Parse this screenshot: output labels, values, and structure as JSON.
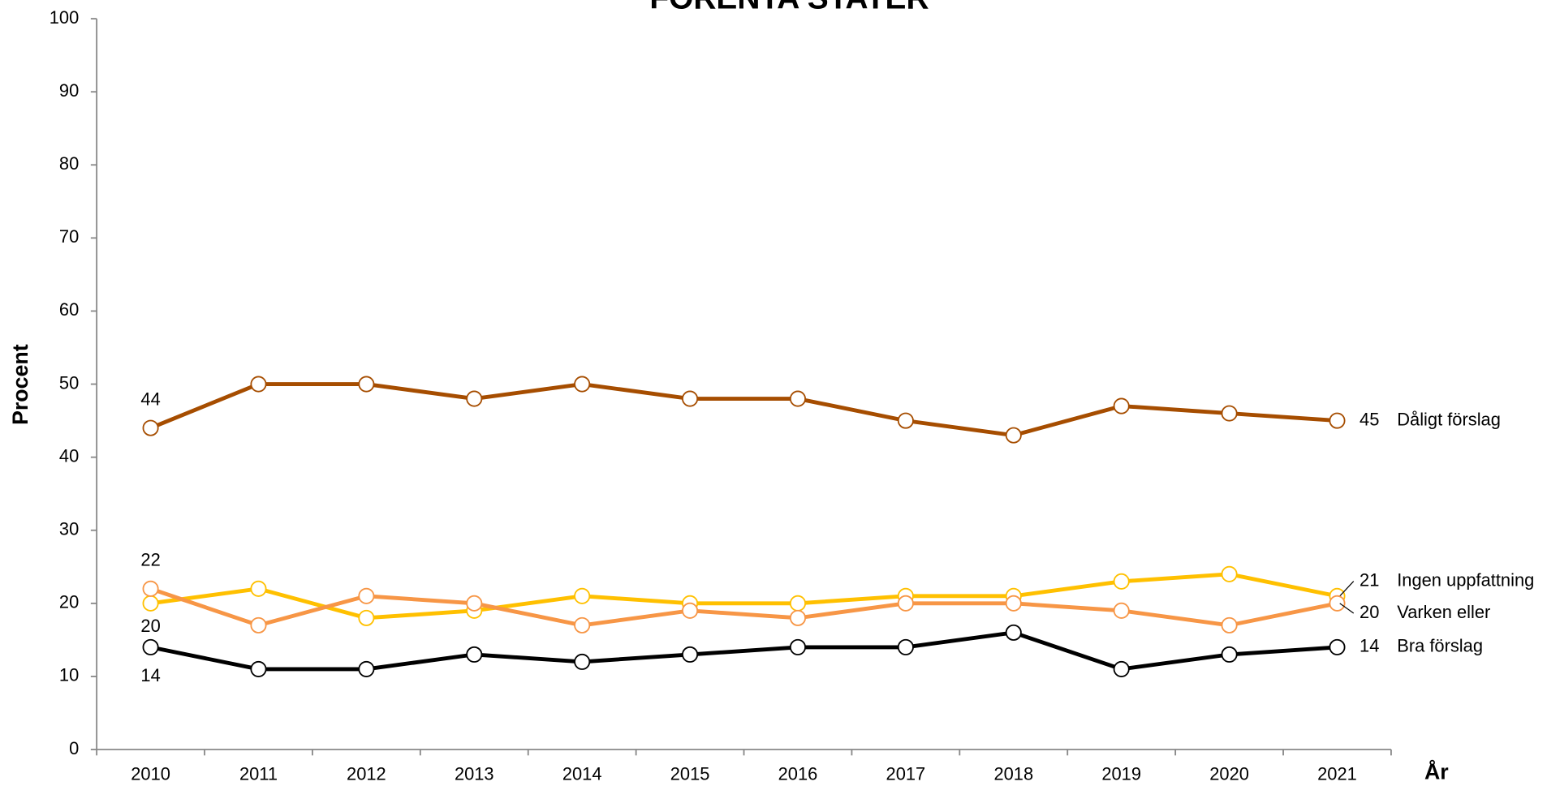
{
  "chart_data": {
    "type": "line",
    "title": "FÖRENTA STATER",
    "x_label": "År",
    "y_label": "Procent",
    "categories": [
      "2010",
      "2011",
      "2012",
      "2013",
      "2014",
      "2015",
      "2016",
      "2017",
      "2018",
      "2019",
      "2020",
      "2021"
    ],
    "ylim": [
      0,
      100
    ],
    "yticks": [
      0,
      10,
      20,
      30,
      40,
      50,
      60,
      70,
      80,
      90,
      100
    ],
    "series": [
      {
        "name": "Dåligt förslag",
        "color": "#a64d00",
        "values": [
          44,
          50,
          50,
          48,
          50,
          48,
          48,
          45,
          43,
          47,
          46,
          45
        ]
      },
      {
        "name": "Ingen uppfattning",
        "color": "#ffc000",
        "values": [
          20,
          22,
          18,
          19,
          21,
          20,
          20,
          21,
          21,
          23,
          24,
          21
        ]
      },
      {
        "name": "Varken eller",
        "color": "#f79646",
        "values": [
          22,
          17,
          21,
          20,
          17,
          19,
          18,
          20,
          20,
          19,
          17,
          20
        ]
      },
      {
        "name": "Bra förslag",
        "color": "#000000",
        "values": [
          14,
          11,
          11,
          13,
          12,
          13,
          14,
          14,
          16,
          11,
          13,
          14
        ]
      }
    ]
  }
}
